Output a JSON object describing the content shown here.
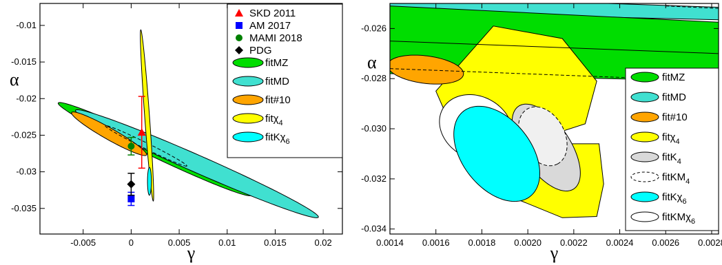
{
  "chart_data": [
    {
      "type": "scatter",
      "xlabel": "γ",
      "ylabel": "α",
      "xlim": [
        -0.0095,
        0.022
      ],
      "ylim": [
        -0.0385,
        -0.007
      ],
      "xticks": [
        "-0.005",
        "0",
        "0.005",
        "0.01",
        "0.015",
        "0.02"
      ],
      "yticks": [
        "-0.035",
        "-0.03",
        "-0.025",
        "-0.02",
        "-0.015",
        "-0.01"
      ],
      "grid": false,
      "legend_position": "top-right",
      "points": [
        {
          "name": "SKD 2011",
          "x": 0.0011,
          "y": -0.0246,
          "err_lo": 0.0049,
          "err_hi": 0.0049,
          "color": "#ff0000",
          "marker": "triangle"
        },
        {
          "name": "AM 2017",
          "x": 0.0,
          "y": -0.0337,
          "err_lo": 0.0009,
          "err_hi": 0.0009,
          "color": "#0000ff",
          "marker": "square"
        },
        {
          "name": "MAMI 2018",
          "x": 0.0,
          "y": -0.0265,
          "err_lo": 0.0012,
          "err_hi": 0.0012,
          "color": "#008000",
          "marker": "circle"
        },
        {
          "name": "PDG",
          "x": 0.0,
          "y": -0.0317,
          "err_lo": 0.0015,
          "err_hi": 0.0015,
          "color": "#000000",
          "marker": "diamond"
        }
      ],
      "series": [
        {
          "name": "fitMZ",
          "fill": "#00dd00",
          "dashed": false,
          "ellipse": {
            "p1": [
              -0.0076,
              -0.0206
            ],
            "p2": [
              0.0125,
              -0.0332
            ],
            "width": 0.0016
          }
        },
        {
          "name": "fitMD",
          "fill": "#40e0d0",
          "dashed": false,
          "ellipse": {
            "p1": [
              -0.0058,
              -0.0216
            ],
            "p2": [
              0.0195,
              -0.0362
            ],
            "width": 0.0018
          }
        },
        {
          "name": "fit#10",
          "fill": "#ffa500",
          "dashed": false,
          "ellipse": {
            "p1": [
              -0.0062,
              -0.0219
            ],
            "p2": [
              0.0016,
              -0.0277
            ],
            "width": 0.0012
          }
        },
        {
          "name": "fit#10 (dashed outline)",
          "fill": "none",
          "dashed": true,
          "ellipse": {
            "p1": [
              -0.0027,
              -0.0237
            ],
            "p2": [
              0.0058,
              -0.0292
            ],
            "width": 0.0006
          }
        },
        {
          "name": "fitχ4",
          "fill": "#ffff00",
          "dashed": false,
          "ellipse": {
            "p1": [
              0.001,
              -0.0106
            ],
            "p2": [
              0.0023,
              -0.034
            ],
            "width": 0.0005
          }
        },
        {
          "name": "fitKχ6",
          "fill": "#00ffff",
          "dashed": false,
          "ellipse": {
            "p1": [
              0.0019,
              -0.0294
            ],
            "p2": [
              0.0019,
              -0.0332
            ],
            "width": 0.0004
          }
        }
      ],
      "legend": [
        {
          "label": "SKD 2011",
          "kind": "marker",
          "marker": "triangle",
          "color": "#ff0000"
        },
        {
          "label": "AM 2017",
          "kind": "marker",
          "marker": "square",
          "color": "#0000ff"
        },
        {
          "label": "MAMI 2018",
          "kind": "marker",
          "marker": "circle",
          "color": "#008000"
        },
        {
          "label": "PDG",
          "kind": "marker",
          "marker": "diamond",
          "color": "#000000"
        },
        {
          "label": "fitMZ",
          "kind": "ellipse",
          "color": "#00dd00"
        },
        {
          "label": "fitMD",
          "kind": "ellipse",
          "color": "#40e0d0"
        },
        {
          "label": "fit#10",
          "kind": "ellipse",
          "color": "#ffa500"
        },
        {
          "label": "fitχ",
          "sub": "4",
          "kind": "ellipse",
          "color": "#ffff00"
        },
        {
          "label": "fitKχ",
          "sub": "6",
          "kind": "ellipse",
          "color": "#00ffff"
        }
      ]
    },
    {
      "type": "scatter",
      "xlabel": "γ",
      "ylabel": "α",
      "xlim": [
        0.0014,
        0.00283
      ],
      "ylim": [
        -0.0342,
        -0.025
      ],
      "xticks": [
        "0.0014",
        "0.0016",
        "0.0018",
        "0.0020",
        "0.0022",
        "0.0024",
        "0.0026",
        "0.0028"
      ],
      "yticks": [
        "-0.034",
        "-0.032",
        "-0.030",
        "-0.028",
        "-0.026"
      ],
      "grid": false,
      "legend_position": "bottom-right",
      "series": [
        {
          "name": "fitMD",
          "fill": "#40e0d0",
          "dashed": false,
          "band": [
            [
              0.0014,
              -0.02535
            ],
            [
              0.00283,
              -0.02565
            ],
            [
              0.00283,
              -0.02515
            ],
            [
              0.0014,
              -0.0247
            ]
          ]
        },
        {
          "name": "fitMZ",
          "fill": "#00dd00",
          "dashed": false,
          "band": [
            [
              0.0014,
              -0.0278
            ],
            [
              0.00283,
              -0.0281
            ],
            [
              0.00283,
              -0.02575
            ],
            [
              0.0014,
              -0.0251
            ]
          ]
        },
        {
          "name": "fitχ4",
          "fill": "#ffff00",
          "dashed": false,
          "band": [
            [
              0.00198,
              -0.0306
            ],
            [
              0.00225,
              -0.0298
            ],
            [
              0.0023,
              -0.0281
            ],
            [
              0.00215,
              -0.0264
            ],
            [
              0.00185,
              -0.0259
            ],
            [
              0.0016,
              -0.0285
            ],
            [
              0.0017,
              -0.0306
            ],
            [
              0.0018,
              -0.0318
            ],
            [
              0.00195,
              -0.0328
            ],
            [
              0.00215,
              -0.03355
            ],
            [
              0.0023,
              -0.0335
            ],
            [
              0.00233,
              -0.0322
            ],
            [
              0.00231,
              -0.0306
            ]
          ]
        },
        {
          "name": "fit#10",
          "fill": "#ffa500",
          "dashed": false,
          "ellipse": {
            "p1": [
              0.00139,
              -0.02745
            ],
            "p2": [
              0.00172,
              -0.02783
            ],
            "width": 0.00012
          }
        },
        {
          "name": "fit#10 dashed line",
          "fill": "none",
          "dashed": true,
          "line": [
            [
              0.0014,
              -0.0276
            ],
            [
              0.00283,
              -0.0281
            ]
          ]
        },
        {
          "name": "fitχ4 line",
          "fill": "none",
          "dashed": false,
          "line": [
            [
              0.0014,
              -0.0265
            ],
            [
              0.00283,
              -0.027
            ]
          ]
        },
        {
          "name": "fitMD dashed edge",
          "fill": "none",
          "dashed": true,
          "line": [
            [
              0.0026,
              -0.0251
            ],
            [
              0.00283,
              -0.0252
            ]
          ]
        },
        {
          "name": "fitK4",
          "fill": "#d9d9d9",
          "dashed": false,
          "ellipse": {
            "p1": [
              0.00196,
              -0.0291
            ],
            "p2": [
              0.0022,
              -0.0324
            ],
            "width": 0.00021
          }
        },
        {
          "name": "fitKM4",
          "fill": "#f0f0f0",
          "dashed": true,
          "ellipse": {
            "p1": [
              0.002,
              -0.0292
            ],
            "p2": [
              0.00213,
              -0.0314
            ],
            "width": 0.00019
          }
        },
        {
          "name": "fitKMχ6",
          "fill": "#ffffff",
          "dashed": false,
          "ellipse": {
            "p1": [
              0.00163,
              -0.0292
            ],
            "p2": [
              0.00192,
              -0.0307
            ],
            "width": 0.00027
          }
        },
        {
          "name": "fitKχ6",
          "fill": "#00ffff",
          "dashed": false,
          "ellipse": {
            "p1": [
              0.00172,
              -0.0293
            ],
            "p2": [
              0.00201,
              -0.0327
            ],
            "width": 0.0003
          }
        }
      ],
      "legend": [
        {
          "label": "fitMZ",
          "kind": "ellipse",
          "color": "#00dd00"
        },
        {
          "label": "fitMD",
          "kind": "ellipse",
          "color": "#40e0d0"
        },
        {
          "label": "fit#10",
          "kind": "ellipse",
          "color": "#ffa500"
        },
        {
          "label": "fitχ",
          "sub": "4",
          "kind": "ellipse",
          "color": "#ffff00"
        },
        {
          "label": "fitK",
          "sub": "4",
          "kind": "ellipse",
          "color": "#d9d9d9"
        },
        {
          "label": "fitKM",
          "sub": "4",
          "kind": "ellipse",
          "color": "#ffffff",
          "dashed": true
        },
        {
          "label": "fitKχ",
          "sub": "6",
          "kind": "ellipse",
          "color": "#00ffff"
        },
        {
          "label": "fitKMχ",
          "sub": "6",
          "kind": "ellipse",
          "color": "#ffffff"
        }
      ]
    }
  ]
}
